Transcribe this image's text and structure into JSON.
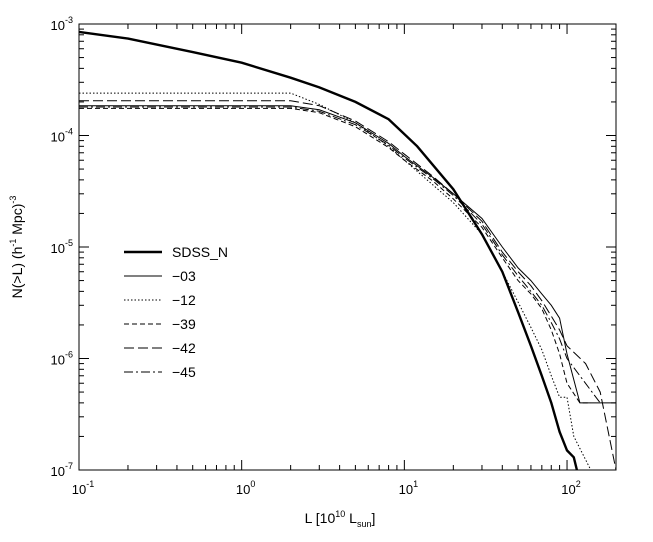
{
  "chart_data": {
    "type": "line",
    "title": "",
    "xlabel": {
      "main": "L [10",
      "exp": "10",
      "mid": " L",
      "sub": "sun",
      "end": "]"
    },
    "ylabel": {
      "main": "N(>L) (h",
      "exp1": "-1",
      "mid": " Mpc)",
      "exp2": "-3"
    },
    "x_scale": "log",
    "y_scale": "log",
    "xlim": [
      0.1,
      200
    ],
    "ylim": [
      1e-07,
      0.001
    ],
    "grid": false,
    "legend_position": "middle-left",
    "x_ticks": [
      {
        "value": 0.1,
        "base": "10",
        "exp": "-1"
      },
      {
        "value": 1,
        "base": "10",
        "exp": "0"
      },
      {
        "value": 10,
        "base": "10",
        "exp": "1"
      },
      {
        "value": 100,
        "base": "10",
        "exp": "2"
      }
    ],
    "y_ticks": [
      {
        "value": 1e-07,
        "base": "10",
        "exp": "-7"
      },
      {
        "value": 1e-06,
        "base": "10",
        "exp": "-6"
      },
      {
        "value": 1e-05,
        "base": "10",
        "exp": "-5"
      },
      {
        "value": 0.0001,
        "base": "10",
        "exp": "-4"
      },
      {
        "value": 0.001,
        "base": "10",
        "exp": "-3"
      }
    ],
    "series": [
      {
        "name": "SDSS_N",
        "style": "thick-solid",
        "x": [
          0.1,
          0.2,
          0.5,
          1,
          2,
          3,
          5,
          8,
          12,
          20,
          30,
          40,
          50,
          60,
          70,
          80,
          90,
          100,
          110,
          115
        ],
        "y": [
          0.00085,
          0.00074,
          0.00056,
          0.00045,
          0.00033,
          0.00027,
          0.0002,
          0.00014,
          8e-05,
          3.3e-05,
          1.3e-05,
          6e-06,
          2.6e-06,
          1.3e-06,
          7e-07,
          4e-07,
          2.2e-07,
          1.5e-07,
          1.3e-07,
          1e-07
        ]
      },
      {
        "name": "−03",
        "style": "thin-solid",
        "x": [
          0.1,
          2.0,
          3,
          5,
          8,
          10,
          15,
          20,
          30,
          40,
          50,
          60,
          70,
          80,
          90,
          100,
          120,
          150,
          200
        ],
        "y": [
          0.000185,
          0.000185,
          0.00017,
          0.00013,
          8.5e-05,
          6.5e-05,
          4.2e-05,
          3e-05,
          1.8e-05,
          1e-05,
          6.5e-06,
          5e-06,
          3.8e-06,
          3e-06,
          2.3e-06,
          1.1e-06,
          4e-07,
          4e-07,
          4e-07
        ]
      },
      {
        "name": "−12",
        "style": "dotted",
        "x": [
          0.1,
          2.0,
          3,
          5,
          8,
          10,
          15,
          20,
          30,
          40,
          50,
          60,
          70,
          80,
          90,
          100,
          110,
          140,
          150
        ],
        "y": [
          0.00024,
          0.00024,
          0.00019,
          0.00013,
          8e-05,
          6e-05,
          3.6e-05,
          2.5e-05,
          1.3e-05,
          6e-06,
          3.2e-06,
          1.9e-06,
          1.2e-06,
          7e-07,
          4.5e-07,
          4.5e-07,
          2e-07,
          1e-07,
          1e-07
        ]
      },
      {
        "name": "−39",
        "style": "dashed",
        "x": [
          0.1,
          2.0,
          3,
          5,
          8,
          10,
          15,
          20,
          30,
          40,
          50,
          60,
          70,
          80,
          90,
          100,
          120,
          140
        ],
        "y": [
          0.000175,
          0.000175,
          0.00016,
          0.00012,
          7.8e-05,
          6e-05,
          3.9e-05,
          2.7e-05,
          1.5e-05,
          8e-06,
          5e-06,
          3.8e-06,
          2.8e-06,
          1.8e-06,
          1.1e-06,
          6e-07,
          4e-07,
          4e-07
        ]
      },
      {
        "name": "−42",
        "style": "long-dashed",
        "x": [
          0.1,
          2.0,
          3,
          5,
          8,
          10,
          15,
          20,
          30,
          40,
          50,
          60,
          70,
          80,
          90,
          100,
          130,
          160,
          200
        ],
        "y": [
          0.000205,
          0.000205,
          0.000185,
          0.000135,
          8.8e-05,
          6.8e-05,
          4.3e-05,
          3e-05,
          1.7e-05,
          9e-06,
          6e-06,
          4.5e-06,
          3.3e-06,
          2.4e-06,
          1.8e-06,
          1.3e-06,
          9e-07,
          5e-07,
          1e-07
        ]
      },
      {
        "name": "−45",
        "style": "dash-dot",
        "x": [
          0.1,
          2.0,
          3,
          5,
          8,
          10,
          15,
          20,
          30,
          40,
          50,
          60,
          70,
          80,
          90,
          100,
          120,
          160
        ],
        "y": [
          0.00018,
          0.00018,
          0.000165,
          0.000125,
          8.2e-05,
          6.3e-05,
          4.1e-05,
          2.9e-05,
          1.6e-05,
          8.5e-06,
          5.5e-06,
          4e-06,
          3e-06,
          2.1e-06,
          1.5e-06,
          1e-06,
          7e-07,
          4e-07
        ]
      }
    ]
  }
}
